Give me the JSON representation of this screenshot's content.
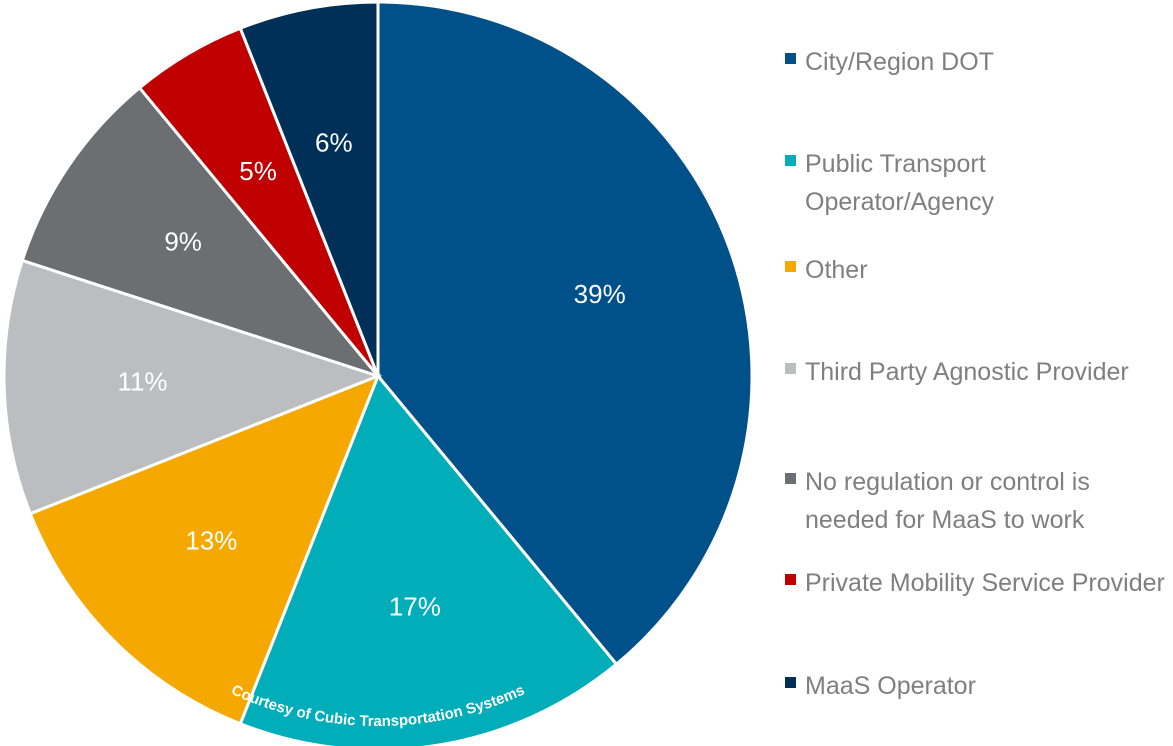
{
  "chart_data": {
    "type": "pie",
    "categories": [
      "City/Region DOT",
      "Public Transport Operator/Agency",
      "Other",
      "Third Party Agnostic Provider",
      "No regulation or control is needed for MaaS to work",
      "Private Mobility Service Provider",
      "MaaS Operator"
    ],
    "values": [
      39,
      17,
      13,
      11,
      9,
      5,
      6
    ],
    "value_labels": [
      "39%",
      "17%",
      "13%",
      "11%",
      "9%",
      "5%",
      "6%"
    ],
    "colors": [
      "#00508a",
      "#00adb9",
      "#f5a800",
      "#bcbdc0",
      "#6d6e71",
      "#c00000",
      "#003057"
    ],
    "annotation": "Courtesy of Cubic Transportation Systems",
    "legend": "right"
  }
}
